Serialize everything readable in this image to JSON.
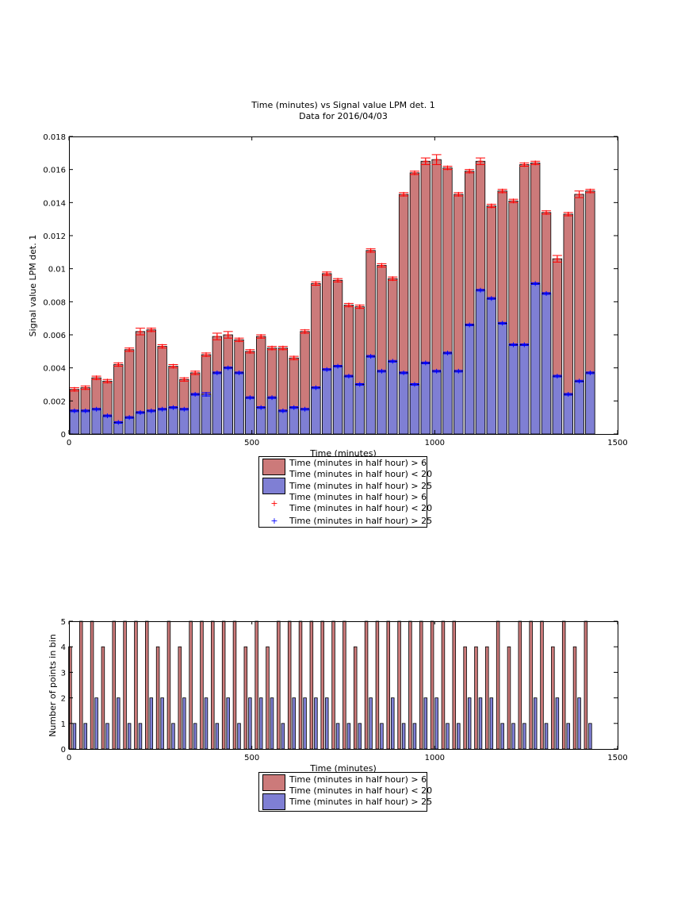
{
  "colors": {
    "group1_bar": "#cc7a7a",
    "group2_bar": "#7f7fd4",
    "group1_marker": "#ff0000",
    "group2_marker": "#0000ff"
  },
  "top_title_line1": "Time (minutes) vs Signal value LPM det. 1",
  "top_title_line2": "Data for 2016/04/03",
  "top_xlabel": "Time (minutes)",
  "top_ylabel": "Signal value LPM det. 1",
  "top_yticks": [
    "0",
    "0.002",
    "0.004",
    "0.006",
    "0.008",
    "0.01",
    "0.012",
    "0.014",
    "0.016",
    "0.018"
  ],
  "xticks": [
    "0",
    "500",
    "1000",
    "1500"
  ],
  "bottom_xlabel": "Time (minutes)",
  "bottom_ylabel": "Number of points in bin",
  "bottom_yticks": [
    "0",
    "1",
    "2",
    "3",
    "4",
    "5"
  ],
  "legend_top": {
    "bar1_line1": "Time (minutes in half hour) > 6",
    "bar1_line2": "Time (minutes in half hour) < 20",
    "bar2": "Time (minutes in half hour) > 25",
    "marker1_line1": "Time (minutes in half hour) > 6",
    "marker1_line2": "Time (minutes in half hour) < 20",
    "marker2": "Time (minutes in half hour) > 25"
  },
  "legend_bottom": {
    "bar1_line1": "Time (minutes in half hour) > 6",
    "bar1_line2": "Time (minutes in half hour) < 20",
    "bar2": "Time (minutes in half hour) > 25"
  },
  "chart_data": [
    {
      "type": "bar",
      "title": "Time (minutes) vs Signal value LPM det. 1",
      "subtitle": "Data for 2016/04/03",
      "xlabel": "Time (minutes)",
      "ylabel": "Signal value LPM det. 1",
      "xlim": [
        0,
        1500
      ],
      "ylim": [
        0,
        0.018
      ],
      "grid": false,
      "legend_position": "below",
      "x": [
        15,
        45,
        75,
        105,
        135,
        165,
        195,
        225,
        255,
        285,
        315,
        345,
        375,
        405,
        435,
        465,
        495,
        525,
        555,
        585,
        615,
        645,
        675,
        705,
        735,
        765,
        795,
        825,
        855,
        885,
        915,
        945,
        975,
        1005,
        1035,
        1065,
        1095,
        1125,
        1155,
        1185,
        1215,
        1245,
        1275,
        1305,
        1335,
        1365,
        1395,
        1425
      ],
      "series": [
        {
          "name": "Time (minutes in half hour) > 6 Time (minutes in half hour) < 20",
          "values": [
            0.0027,
            0.0028,
            0.0034,
            0.0032,
            0.0042,
            0.0051,
            0.0062,
            0.0063,
            0.0053,
            0.0041,
            0.0033,
            0.0037,
            0.0048,
            0.0059,
            0.006,
            0.0057,
            0.005,
            0.0059,
            0.0052,
            0.0052,
            0.0046,
            0.0062,
            0.0091,
            0.0097,
            0.0093,
            0.0078,
            0.0077,
            0.0111,
            0.0102,
            0.0094,
            0.0145,
            0.0158,
            0.0165,
            0.0166,
            0.0161,
            0.0145,
            0.0159,
            0.0165,
            0.0138,
            0.0147,
            0.0141,
            0.0163,
            0.0164,
            0.0134,
            0.0106,
            0.0133,
            0.0145,
            0.0147
          ],
          "errors": [
            0.0001,
            0.0001,
            0.0001,
            0.0001,
            0.0001,
            0.0001,
            0.0002,
            0.0001,
            0.0001,
            0.0001,
            0.0001,
            0.0001,
            0.0001,
            0.0002,
            0.0002,
            0.0001,
            0.0001,
            0.0001,
            0.0001,
            0.0001,
            0.0001,
            0.0001,
            0.0001,
            0.0001,
            0.0001,
            0.0001,
            0.0001,
            0.0001,
            0.0001,
            0.0001,
            0.0001,
            0.0001,
            0.0002,
            0.0003,
            0.0001,
            0.0001,
            0.0001,
            0.0002,
            0.0001,
            0.0001,
            0.0001,
            0.0001,
            0.0001,
            0.0001,
            0.0002,
            0.0001,
            0.0002,
            0.0001
          ]
        },
        {
          "name": "Time (minutes in half hour) > 25",
          "values": [
            0.0014,
            0.0014,
            0.0015,
            0.0011,
            0.0007,
            0.001,
            0.0013,
            0.0014,
            0.0015,
            0.0016,
            0.0015,
            0.0024,
            0.0024,
            0.0037,
            0.004,
            0.0037,
            0.0022,
            0.0016,
            0.0022,
            0.0014,
            0.0016,
            0.0015,
            0.0028,
            0.0039,
            0.0041,
            0.0035,
            0.003,
            0.0047,
            0.0038,
            0.0044,
            0.0037,
            0.003,
            0.0043,
            0.0038,
            0.0049,
            0.0038,
            0.0066,
            0.0087,
            0.0082,
            0.0067,
            0.0054,
            0.0054,
            0.0091,
            0.0085,
            0.0035,
            0.0024,
            0.0032,
            0.0037
          ],
          "errors": [
            5e-05,
            5e-05,
            5e-05,
            5e-05,
            5e-05,
            5e-05,
            5e-05,
            5e-05,
            5e-05,
            5e-05,
            5e-05,
            5e-05,
            0.0001,
            5e-05,
            5e-05,
            5e-05,
            5e-05,
            5e-05,
            5e-05,
            5e-05,
            5e-05,
            5e-05,
            5e-05,
            5e-05,
            5e-05,
            5e-05,
            5e-05,
            5e-05,
            5e-05,
            5e-05,
            5e-05,
            5e-05,
            5e-05,
            5e-05,
            5e-05,
            5e-05,
            5e-05,
            5e-05,
            5e-05,
            5e-05,
            5e-05,
            5e-05,
            5e-05,
            5e-05,
            5e-05,
            5e-05,
            5e-05,
            5e-05
          ]
        }
      ],
      "markers": [
        {
          "name": "Time (minutes in half hour) > 6 Time (minutes in half hour) < 20",
          "symbol": "+",
          "values_from_series": 0
        },
        {
          "name": "Time (minutes in half hour) > 25",
          "symbol": "+",
          "values_from_series": 1
        }
      ]
    },
    {
      "type": "bar",
      "xlabel": "Time (minutes)",
      "ylabel": "Number of points in bin",
      "xlim": [
        0,
        1500
      ],
      "ylim": [
        0,
        5
      ],
      "grid": false,
      "legend_position": "below",
      "x": [
        15,
        45,
        75,
        105,
        135,
        165,
        195,
        225,
        255,
        285,
        315,
        345,
        375,
        405,
        435,
        465,
        495,
        525,
        555,
        585,
        615,
        645,
        675,
        705,
        735,
        765,
        795,
        825,
        855,
        885,
        915,
        945,
        975,
        1005,
        1035,
        1065,
        1095,
        1125,
        1155,
        1185,
        1215,
        1245,
        1275,
        1305,
        1335,
        1365,
        1395,
        1425
      ],
      "series": [
        {
          "name": "Time (minutes in half hour) > 6 Time (minutes in half hour) < 20",
          "values": [
            4,
            5,
            5,
            4,
            5,
            5,
            5,
            5,
            4,
            5,
            4,
            5,
            5,
            5,
            5,
            5,
            4,
            5,
            4,
            5,
            5,
            5,
            5,
            5,
            5,
            5,
            4,
            5,
            5,
            5,
            5,
            5,
            5,
            5,
            5,
            5,
            4,
            4,
            4,
            5,
            4,
            5,
            5,
            5,
            4,
            5,
            4,
            5
          ]
        },
        {
          "name": "Time (minutes in half hour) > 25",
          "values": [
            1,
            1,
            2,
            1,
            2,
            1,
            1,
            2,
            2,
            1,
            2,
            1,
            2,
            1,
            2,
            1,
            2,
            2,
            2,
            1,
            2,
            2,
            2,
            2,
            1,
            1,
            1,
            2,
            1,
            2,
            1,
            1,
            2,
            2,
            1,
            1,
            2,
            2,
            2,
            1,
            1,
            1,
            2,
            1,
            2,
            1,
            2,
            1
          ]
        }
      ]
    }
  ]
}
